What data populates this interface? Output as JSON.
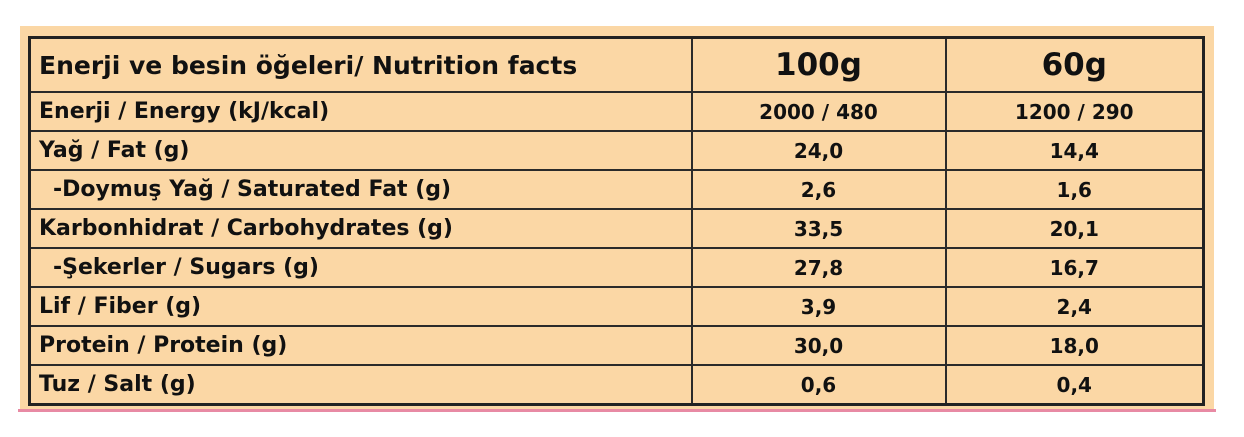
{
  "table": {
    "header": {
      "label": "Enerji ve besin öğeleri/ Nutrition facts",
      "col1": "100g",
      "col2": "60g"
    },
    "rows": [
      {
        "label": "Enerji / Energy (kJ/kcal)",
        "v100": "2000 / 480",
        "v60": "1200 / 290",
        "indent": false
      },
      {
        "label": "Yağ / Fat (g)",
        "v100": "24,0",
        "v60": "14,4",
        "indent": false
      },
      {
        "label": "-Doymuş Yağ / Saturated Fat (g)",
        "v100": "2,6",
        "v60": "1,6",
        "indent": true
      },
      {
        "label": "Karbonhidrat / Carbohydrates (g)",
        "v100": "33,5",
        "v60": "20,1",
        "indent": false
      },
      {
        "label": "-Şekerler / Sugars (g)",
        "v100": "27,8",
        "v60": "16,7",
        "indent": true
      },
      {
        "label": "Lif / Fiber (g)",
        "v100": "3,9",
        "v60": "2,4",
        "indent": false
      },
      {
        "label": "Protein / Protein (g)",
        "v100": "30,0",
        "v60": "18,0",
        "indent": false
      },
      {
        "label": "Tuz / Salt (g)",
        "v100": "0,6",
        "v60": "0,4",
        "indent": false
      }
    ]
  },
  "colors": {
    "background": "#fbd7a5",
    "border": "#222222",
    "text": "#111111",
    "accent_line": "#e88aa4"
  }
}
